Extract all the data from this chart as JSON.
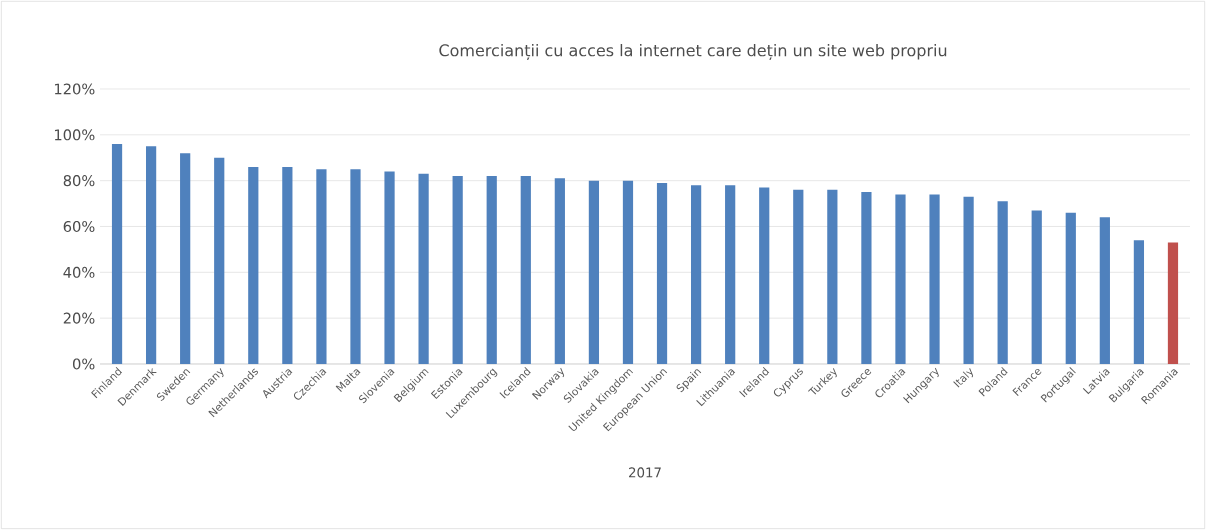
{
  "chart_data": {
    "type": "bar",
    "title": "Comercianții cu acces la internet care dețin un site web propriu",
    "xlabel": "2017",
    "categories": [
      "Finland",
      "Denmark",
      "Sweden",
      "Germany",
      "Netherlands",
      "Austria",
      "Czechia",
      "Malta",
      "Slovenia",
      "Belgium",
      "Estonia",
      "Luxembourg",
      "Iceland",
      "Norway",
      "Slovakia",
      "United Kingdom",
      "European Union",
      "Spain",
      "Lithuania",
      "Ireland",
      "Cyprus",
      "Turkey",
      "Greece",
      "Croatia",
      "Hungary",
      "Italy",
      "Poland",
      "France",
      "Portugal",
      "Latvia",
      "Bulgaria",
      "Romania"
    ],
    "values": [
      96,
      95,
      92,
      90,
      86,
      86,
      85,
      85,
      84,
      83,
      82,
      82,
      82,
      81,
      80,
      80,
      79,
      78,
      78,
      77,
      76,
      76,
      75,
      74,
      74,
      73,
      71,
      67,
      66,
      64,
      54,
      53
    ],
    "colors": [
      "#4f81bd",
      "#4f81bd",
      "#4f81bd",
      "#4f81bd",
      "#4f81bd",
      "#4f81bd",
      "#4f81bd",
      "#4f81bd",
      "#4f81bd",
      "#4f81bd",
      "#4f81bd",
      "#4f81bd",
      "#4f81bd",
      "#4f81bd",
      "#4f81bd",
      "#4f81bd",
      "#4f81bd",
      "#4f81bd",
      "#4f81bd",
      "#4f81bd",
      "#4f81bd",
      "#4f81bd",
      "#4f81bd",
      "#4f81bd",
      "#4f81bd",
      "#4f81bd",
      "#4f81bd",
      "#4f81bd",
      "#4f81bd",
      "#4f81bd",
      "#4f81bd",
      "#c0504d"
    ],
    "ylim": [
      0,
      120
    ],
    "yticks": [
      {
        "value": 0,
        "label": "0%"
      },
      {
        "value": 20,
        "label": "20%"
      },
      {
        "value": 40,
        "label": "40%"
      },
      {
        "value": 60,
        "label": "60%"
      },
      {
        "value": 80,
        "label": "80%"
      },
      {
        "value": 100,
        "label": "100%"
      },
      {
        "value": 120,
        "label": "120%"
      }
    ],
    "grid": "y"
  }
}
